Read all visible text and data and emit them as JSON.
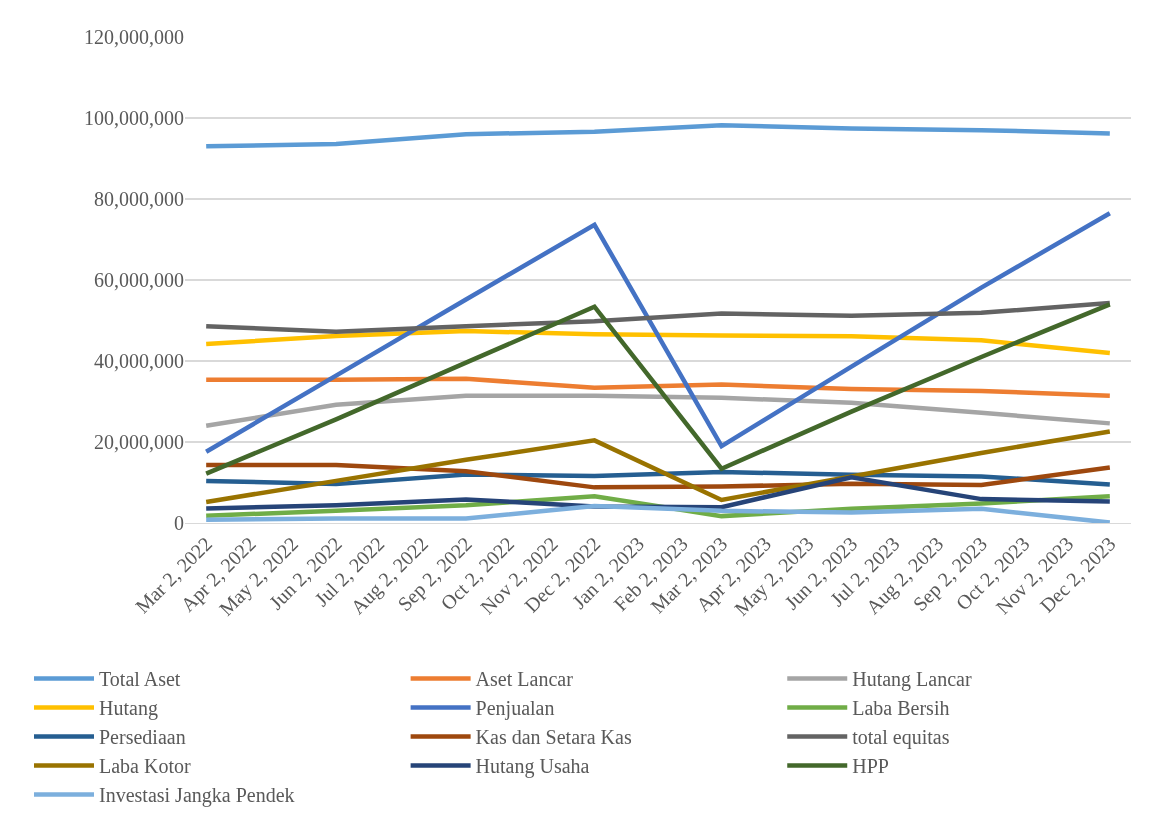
{
  "chart_data": {
    "type": "line",
    "x": [
      "2022-03-02",
      "2022-06-02",
      "2022-09-02",
      "2022-12-02",
      "2023-03-02",
      "2023-06-02",
      "2023-09-02",
      "2023-12-02"
    ],
    "series": [
      {
        "name": "Total Aset",
        "color": "#5b9bd5",
        "values": [
          93000000,
          93600000,
          96000000,
          96600000,
          98200000,
          97400000,
          97000000,
          96200000
        ]
      },
      {
        "name": "Aset Lancar",
        "color": "#ed7d31",
        "values": [
          35400000,
          35400000,
          35600000,
          33400000,
          34200000,
          33100000,
          32600000,
          31400000
        ]
      },
      {
        "name": "Hutang Lancar",
        "color": "#a5a5a5",
        "values": [
          24000000,
          29200000,
          31400000,
          31400000,
          30900000,
          29700000,
          27200000,
          24600000
        ]
      },
      {
        "name": "Hutang",
        "color": "#ffc000",
        "values": [
          44200000,
          46200000,
          47400000,
          46600000,
          46300000,
          46100000,
          45100000,
          42000000
        ]
      },
      {
        "name": "Penjualan",
        "color": "#4472c4",
        "values": [
          17600000,
          36400000,
          55200000,
          73600000,
          19000000,
          38600000,
          58100000,
          76500000
        ]
      },
      {
        "name": "Laba Bersih",
        "color": "#70ad47",
        "values": [
          1800000,
          3000000,
          4400000,
          6600000,
          1700000,
          3500000,
          4800000,
          6600000
        ]
      },
      {
        "name": "Persediaan",
        "color": "#255e91",
        "values": [
          10400000,
          9600000,
          12000000,
          11600000,
          12600000,
          11900000,
          11500000,
          9500000
        ]
      },
      {
        "name": "Kas dan Setara Kas",
        "color": "#9e480e",
        "values": [
          14300000,
          14300000,
          12800000,
          8800000,
          9000000,
          9700000,
          9400000,
          13700000
        ]
      },
      {
        "name": "total equitas",
        "color": "#636363",
        "values": [
          48600000,
          47200000,
          48600000,
          49800000,
          51700000,
          51200000,
          51900000,
          54300000
        ]
      },
      {
        "name": "Laba Kotor",
        "color": "#997300",
        "values": [
          5200000,
          10400000,
          15600000,
          20400000,
          5700000,
          11500000,
          17300000,
          22600000
        ]
      },
      {
        "name": "Hutang Usaha",
        "color": "#264478",
        "values": [
          3600000,
          4400000,
          5800000,
          4100000,
          3900000,
          11300000,
          5900000,
          5300000
        ]
      },
      {
        "name": "HPP",
        "color": "#43682b",
        "values": [
          12200000,
          25600000,
          39600000,
          53400000,
          13400000,
          27500000,
          41000000,
          54000000
        ]
      },
      {
        "name": "Investasi Jangka Pendek",
        "color": "#7cafdd",
        "values": [
          800000,
          1100000,
          1100000,
          4200000,
          3000000,
          2600000,
          3500000,
          100000
        ]
      }
    ],
    "xlim": [
      "2022-02-15",
      "2023-12-17"
    ],
    "xticks": [
      {
        "value": "2022-03-02",
        "label": "Mar 2, 2022"
      },
      {
        "value": "2022-04-02",
        "label": "Apr 2, 2022"
      },
      {
        "value": "2022-05-02",
        "label": "May 2, 2022"
      },
      {
        "value": "2022-06-02",
        "label": "Jun 2, 2022"
      },
      {
        "value": "2022-07-02",
        "label": "Jul 2, 2022"
      },
      {
        "value": "2022-08-02",
        "label": "Aug 2, 2022"
      },
      {
        "value": "2022-09-02",
        "label": "Sep 2, 2022"
      },
      {
        "value": "2022-10-02",
        "label": "Oct 2, 2022"
      },
      {
        "value": "2022-11-02",
        "label": "Nov 2, 2022"
      },
      {
        "value": "2022-12-02",
        "label": "Dec 2, 2022"
      },
      {
        "value": "2023-01-02",
        "label": "Jan 2, 2023"
      },
      {
        "value": "2023-02-02",
        "label": "Feb 2, 2023"
      },
      {
        "value": "2023-03-02",
        "label": "Mar 2, 2023"
      },
      {
        "value": "2023-04-02",
        "label": "Apr 2, 2023"
      },
      {
        "value": "2023-05-02",
        "label": "May 2, 2023"
      },
      {
        "value": "2023-06-02",
        "label": "Jun 2, 2023"
      },
      {
        "value": "2023-07-02",
        "label": "Jul 2, 2023"
      },
      {
        "value": "2023-08-02",
        "label": "Aug 2, 2023"
      },
      {
        "value": "2023-09-02",
        "label": "Sep 2, 2023"
      },
      {
        "value": "2023-10-02",
        "label": "Oct 2, 2023"
      },
      {
        "value": "2023-11-02",
        "label": "Nov 2, 2023"
      },
      {
        "value": "2023-12-02",
        "label": "Dec 2, 2023"
      }
    ],
    "ylim": [
      0,
      120000000
    ],
    "yticks": [
      {
        "value": 0,
        "label": "0"
      },
      {
        "value": 20000000,
        "label": "20,000,000"
      },
      {
        "value": 40000000,
        "label": "40,000,000"
      },
      {
        "value": 60000000,
        "label": "60,000,000"
      },
      {
        "value": 80000000,
        "label": "80,000,000"
      },
      {
        "value": 100000000,
        "label": "100,000,000"
      },
      {
        "value": 120000000,
        "label": "120,000,000"
      }
    ],
    "grid": "y",
    "legend": "bottom",
    "marker": "none",
    "line_style": "solid"
  }
}
